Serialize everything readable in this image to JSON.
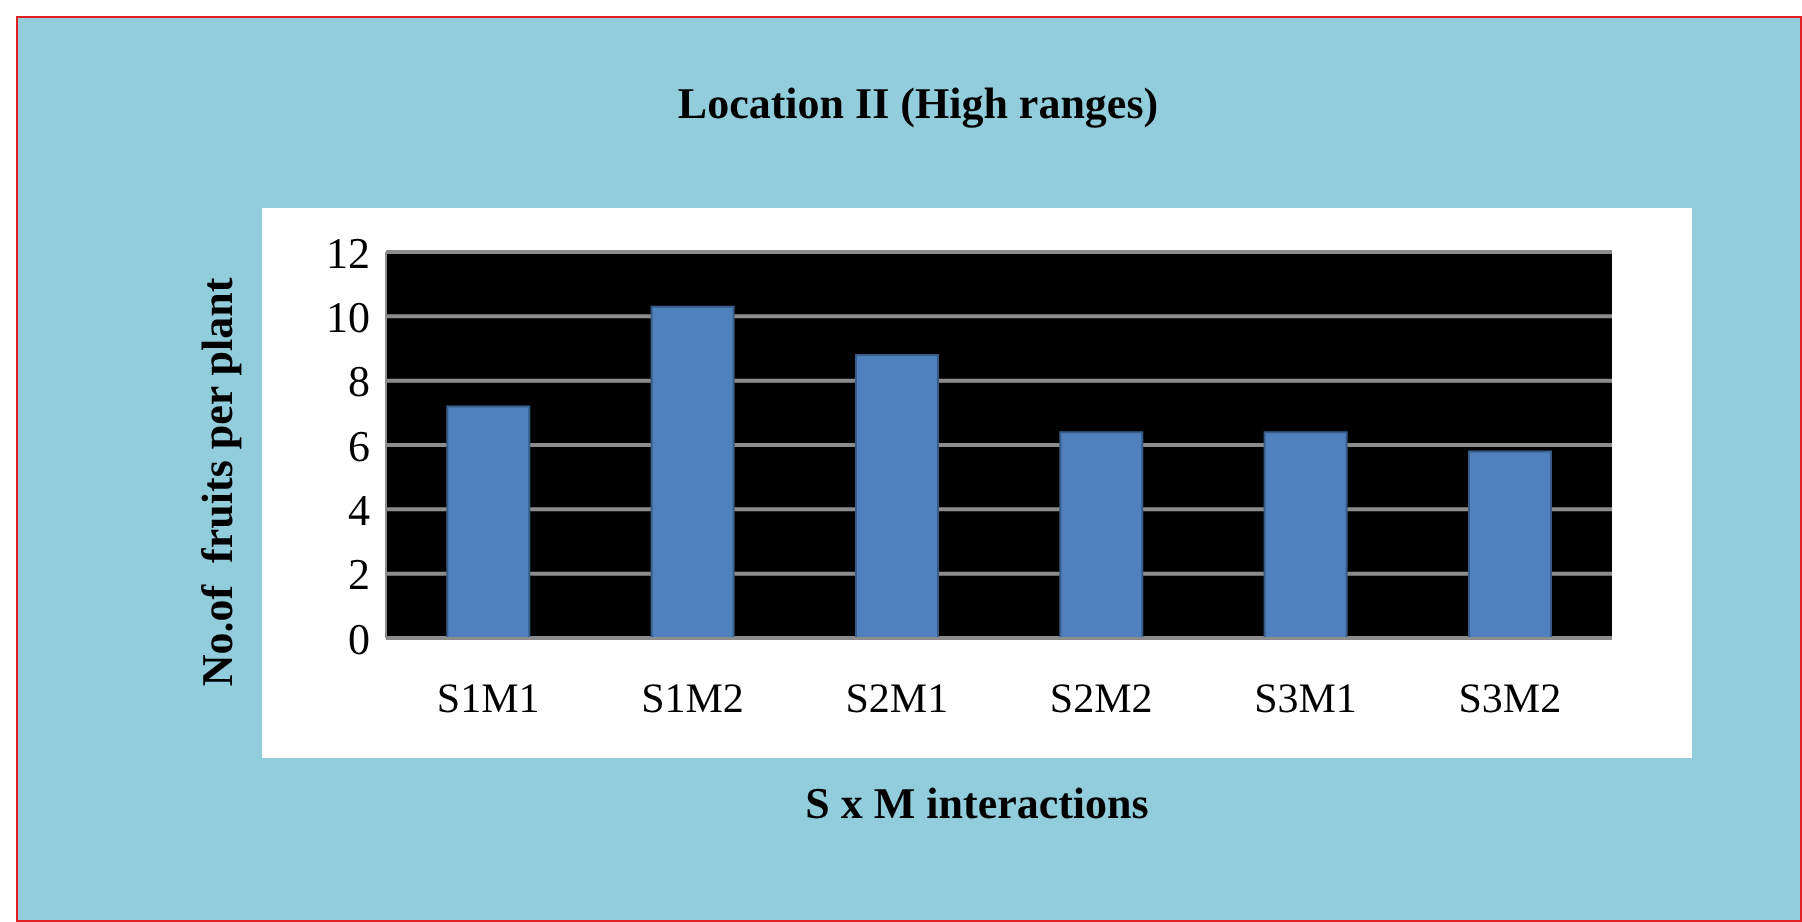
{
  "chart_data": {
    "type": "bar",
    "title": "Location II (High ranges)",
    "xlabel": "S x M interactions",
    "ylabel": "No.of  fruits per plant",
    "categories": [
      "S1M1",
      "S1M2",
      "S2M1",
      "S2M2",
      "S3M1",
      "S3M2"
    ],
    "values": [
      7.2,
      10.3,
      8.8,
      6.4,
      6.4,
      5.8
    ],
    "color": "#4f81bd",
    "ylim": [
      0,
      12
    ],
    "yticks": [
      0,
      2,
      4,
      6,
      8,
      10,
      12
    ],
    "grid": "y"
  }
}
